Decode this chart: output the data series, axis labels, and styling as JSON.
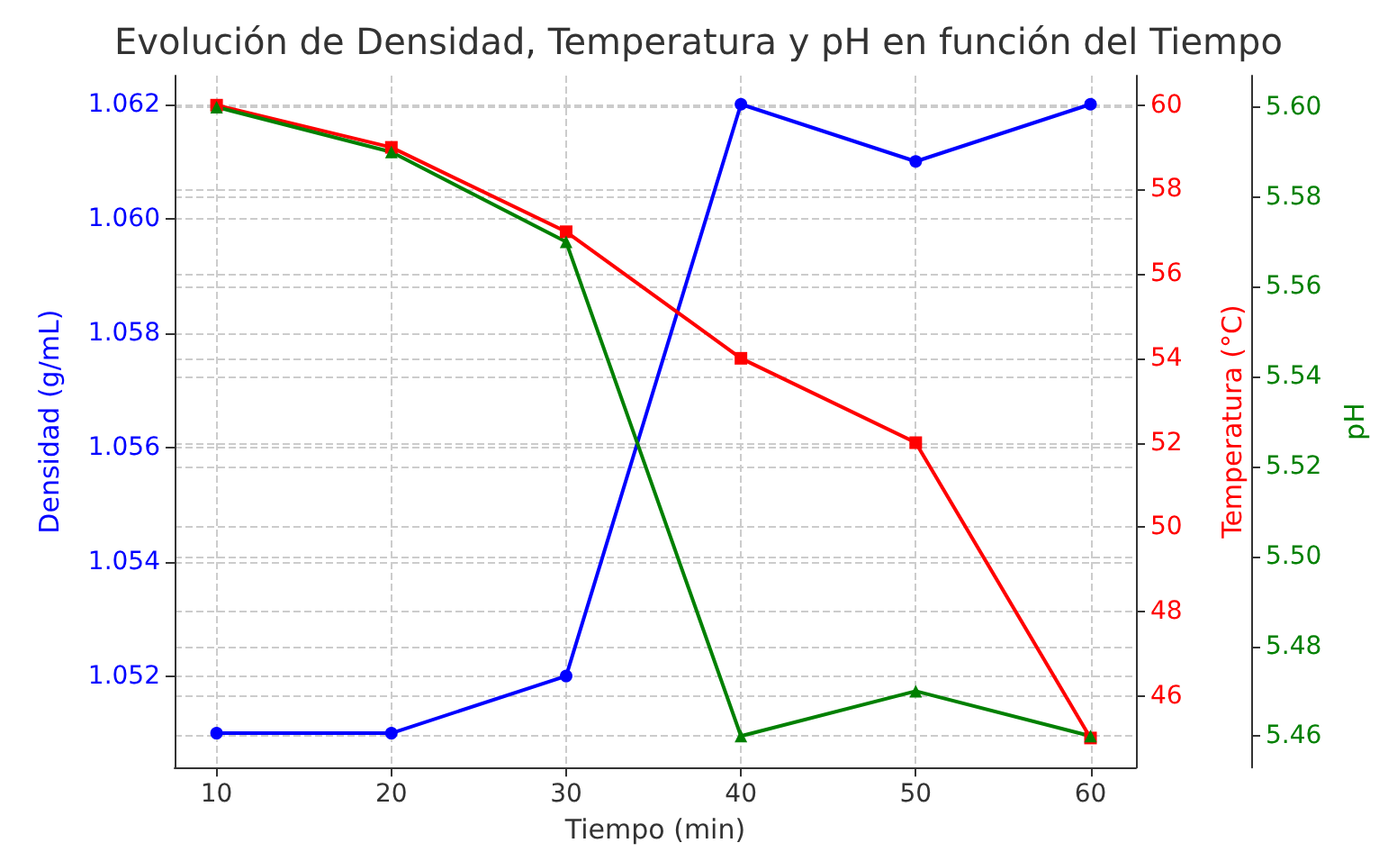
{
  "chart_data": {
    "type": "line",
    "title": "Evolución de Densidad, Temperatura y pH en función del Tiempo",
    "xlabel": "Tiempo (min)",
    "ylabel": "Densidad (g/mL)",
    "y2label": "Temperatura (°C)",
    "y3label": "pH",
    "x": [
      10,
      20,
      30,
      40,
      50,
      60
    ],
    "series": [
      {
        "color": "#0000ff",
        "marker": "circle",
        "axis": "y",
        "values": [
          1.051,
          1.051,
          1.052,
          1.062,
          1.061,
          1.062
        ]
      },
      {
        "color": "#ff0000",
        "marker": "square",
        "axis": "y2",
        "values": [
          60,
          59,
          57,
          54,
          52,
          45
        ]
      },
      {
        "color": "#008000",
        "marker": "triangle",
        "axis": "y3",
        "values": [
          5.6,
          5.59,
          5.57,
          5.46,
          5.47,
          5.46
        ]
      }
    ],
    "xlim": [
      7.6,
      62.6
    ],
    "xticks": [
      10,
      20,
      30,
      40,
      50,
      60
    ],
    "ylim": [
      1.0504,
      1.0625
    ],
    "yticks": [
      1.052,
      1.054,
      1.056,
      1.058,
      {
        "value": 1.06,
        "label": "1.060"
      },
      1.062
    ],
    "y2lim": [
      44.3,
      60.7
    ],
    "y2ticks": [
      46,
      48,
      50,
      52,
      54,
      56,
      58,
      60
    ],
    "y3lim": [
      5.453,
      5.607
    ],
    "y3ticks": [
      {
        "value": 5.46,
        "label": "5.46"
      },
      {
        "value": 5.48,
        "label": "5.48"
      },
      {
        "value": 5.5,
        "label": "5.50"
      },
      {
        "value": 5.52,
        "label": "5.52"
      },
      {
        "value": 5.54,
        "label": "5.54"
      },
      {
        "value": 5.56,
        "label": "5.56"
      },
      {
        "value": 5.58,
        "label": "5.58"
      },
      {
        "value": 5.6,
        "label": "5.60"
      }
    ],
    "grid": true,
    "line_style": "solid"
  }
}
